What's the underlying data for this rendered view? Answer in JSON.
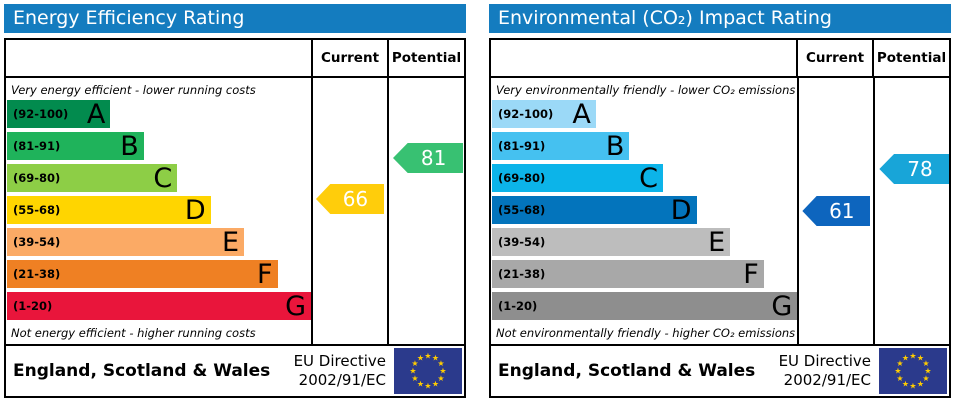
{
  "chart_data": [
    {
      "type": "epc_rating_bar",
      "title": "Energy Efficiency Rating",
      "header_color": "#147cbf",
      "columns": {
        "current": "Current",
        "potential": "Potential"
      },
      "top_caption": "Very energy efficient - lower running costs",
      "bottom_caption": "Not energy efficient - higher running costs",
      "bands": [
        {
          "range": "(92-100)",
          "letter": "A",
          "min": 92,
          "max": 100,
          "color": "#028b4e"
        },
        {
          "range": "(81-91)",
          "letter": "B",
          "min": 81,
          "max": 91,
          "color": "#1fb35b"
        },
        {
          "range": "(69-80)",
          "letter": "C",
          "min": 69,
          "max": 80,
          "color": "#8dce46"
        },
        {
          "range": "(55-68)",
          "letter": "D",
          "min": 55,
          "max": 68,
          "color": "#ffd500"
        },
        {
          "range": "(39-54)",
          "letter": "E",
          "min": 39,
          "max": 54,
          "color": "#fbaa65"
        },
        {
          "range": "(21-38)",
          "letter": "F",
          "min": 21,
          "max": 38,
          "color": "#ef8023"
        },
        {
          "range": "(1-20)",
          "letter": "G",
          "min": 1,
          "max": 20,
          "color": "#e9153b"
        }
      ],
      "current": {
        "value": 66,
        "band": "D",
        "color": "#ffcd0b"
      },
      "potential": {
        "value": 81,
        "band": "B",
        "color": "#38c172"
      },
      "footer": {
        "region": "England, Scotland & Wales",
        "directive_line1": "EU Directive",
        "directive_line2": "2002/91/EC"
      }
    },
    {
      "type": "epc_rating_bar",
      "title": "Environmental (CO₂) Impact Rating",
      "header_color": "#147cbf",
      "columns": {
        "current": "Current",
        "potential": "Potential"
      },
      "top_caption": "Very environmentally friendly - lower CO₂ emissions",
      "bottom_caption": "Not environmentally friendly - higher CO₂ emissions",
      "bands": [
        {
          "range": "(92-100)",
          "letter": "A",
          "min": 92,
          "max": 100,
          "color": "#9bd9f7"
        },
        {
          "range": "(81-91)",
          "letter": "B",
          "min": 81,
          "max": 91,
          "color": "#45c1f0"
        },
        {
          "range": "(69-80)",
          "letter": "C",
          "min": 69,
          "max": 80,
          "color": "#0cb4e9"
        },
        {
          "range": "(55-68)",
          "letter": "D",
          "min": 55,
          "max": 68,
          "color": "#0374bc"
        },
        {
          "range": "(39-54)",
          "letter": "E",
          "min": 39,
          "max": 54,
          "color": "#bdbdbd"
        },
        {
          "range": "(21-38)",
          "letter": "F",
          "min": 21,
          "max": 38,
          "color": "#a8a8a8"
        },
        {
          "range": "(1-20)",
          "letter": "G",
          "min": 1,
          "max": 20,
          "color": "#8e8e8e"
        }
      ],
      "current": {
        "value": 61,
        "band": "D",
        "color": "#0d65be"
      },
      "potential": {
        "value": 78,
        "band": "C",
        "color": "#18a5d8"
      },
      "footer": {
        "region": "England, Scotland & Wales",
        "directive_line1": "EU Directive",
        "directive_line2": "2002/91/EC"
      }
    }
  ],
  "eu_flag": {
    "background": "#2b3a8c",
    "star_color": "#ffcc00",
    "star_count": 12
  }
}
